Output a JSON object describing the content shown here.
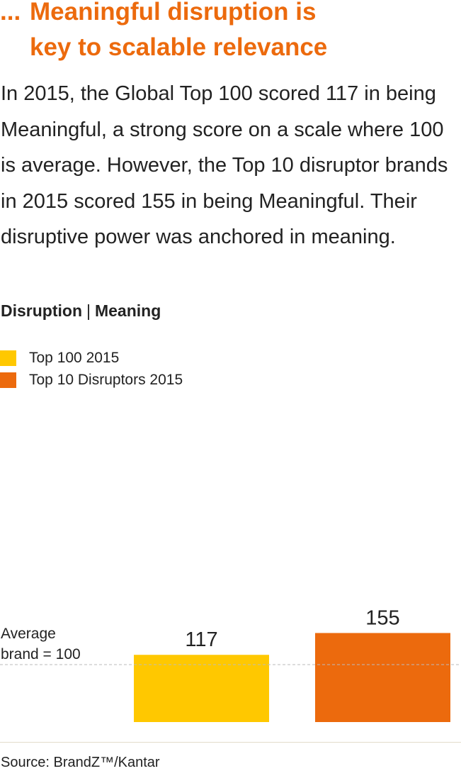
{
  "headline": {
    "prefix": "...",
    "line1": "Meaningful disruption is",
    "line2": "key to scalable relevance"
  },
  "body_text": "In 2015, the Global Top 100 scored 117 in being Meaningful, a strong score on a scale where 100 is average. However, the Top 10 disruptor brands in 2015 scored 155 in being Meaningful. Their disruptive power was anchored in meaning.",
  "chart_heading": {
    "part1": "Disruption",
    "separator": "|",
    "part2": "Meaning"
  },
  "average_label": {
    "line1": "Average",
    "line2": "brand = 100"
  },
  "source": "Source: BrandZ™/Kantar",
  "colors": {
    "accent": "#ec6a0d",
    "top100": "#ffc800",
    "disruptors": "#ec6a0d",
    "reference_line": "#bbbbbb"
  },
  "chart_data": {
    "type": "bar",
    "title": "Disruption | Meaning",
    "categories": [
      "Top 100 2015",
      "Top 10 Disruptors 2015"
    ],
    "series": [
      {
        "name": "Top 100 2015",
        "values": [
          117,
          null
        ],
        "color": "#ffc800"
      },
      {
        "name": "Top 10 Disruptors 2015",
        "values": [
          null,
          155
        ],
        "color": "#ec6a0d"
      }
    ],
    "values": [
      117,
      155
    ],
    "value_labels": [
      "117",
      "155"
    ],
    "reference_line": {
      "value": 100,
      "style": "dashed"
    },
    "legend": "top-left",
    "grid": false,
    "xlabel": "",
    "ylabel": ""
  }
}
